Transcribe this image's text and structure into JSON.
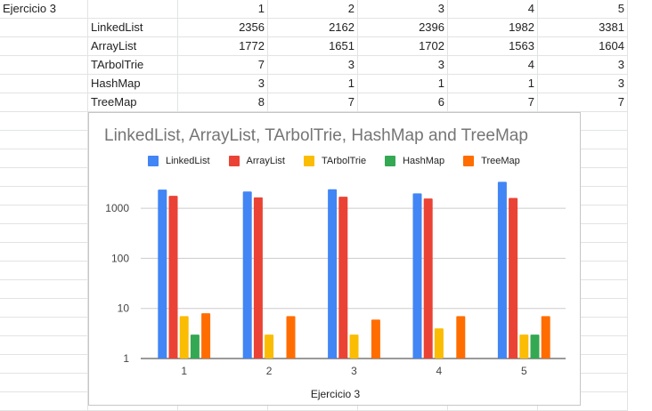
{
  "sheet": {
    "header_label": "Ejercicio 3",
    "columns": [
      "1",
      "2",
      "3",
      "4",
      "5"
    ],
    "rows": [
      {
        "label": "LinkedList",
        "values": [
          "2356",
          "2162",
          "2396",
          "1982",
          "3381"
        ]
      },
      {
        "label": "ArrayList",
        "values": [
          "1772",
          "1651",
          "1702",
          "1563",
          "1604"
        ]
      },
      {
        "label": "TArbolTrie",
        "values": [
          "7",
          "3",
          "3",
          "4",
          "3"
        ]
      },
      {
        "label": "HashMap",
        "values": [
          "3",
          "1",
          "1",
          "1",
          "3"
        ]
      },
      {
        "label": "TreeMap",
        "values": [
          "8",
          "7",
          "6",
          "7",
          "7"
        ]
      }
    ]
  },
  "chart_data": {
    "type": "bar",
    "title": "LinkedList, ArrayList, TArbolTrie, HashMap and TreeMap",
    "xlabel": "Ejercicio 3",
    "ylabel": "",
    "y_scale": "log",
    "ylim": [
      1,
      5000
    ],
    "yticks": [
      "1",
      "10",
      "100",
      "1000"
    ],
    "grid": true,
    "legend_position": "top",
    "categories": [
      "1",
      "2",
      "3",
      "4",
      "5"
    ],
    "series": [
      {
        "name": "LinkedList",
        "color": "#4285f4",
        "values": [
          2356,
          2162,
          2396,
          1982,
          3381
        ]
      },
      {
        "name": "ArrayList",
        "color": "#ea4335",
        "values": [
          1772,
          1651,
          1702,
          1563,
          1604
        ]
      },
      {
        "name": "TArbolTrie",
        "color": "#fbbc04",
        "values": [
          7,
          3,
          3,
          4,
          3
        ]
      },
      {
        "name": "HashMap",
        "color": "#34a853",
        "values": [
          3,
          1,
          1,
          1,
          3
        ]
      },
      {
        "name": "TreeMap",
        "color": "#ff6d01",
        "values": [
          8,
          7,
          6,
          7,
          7
        ]
      }
    ]
  }
}
